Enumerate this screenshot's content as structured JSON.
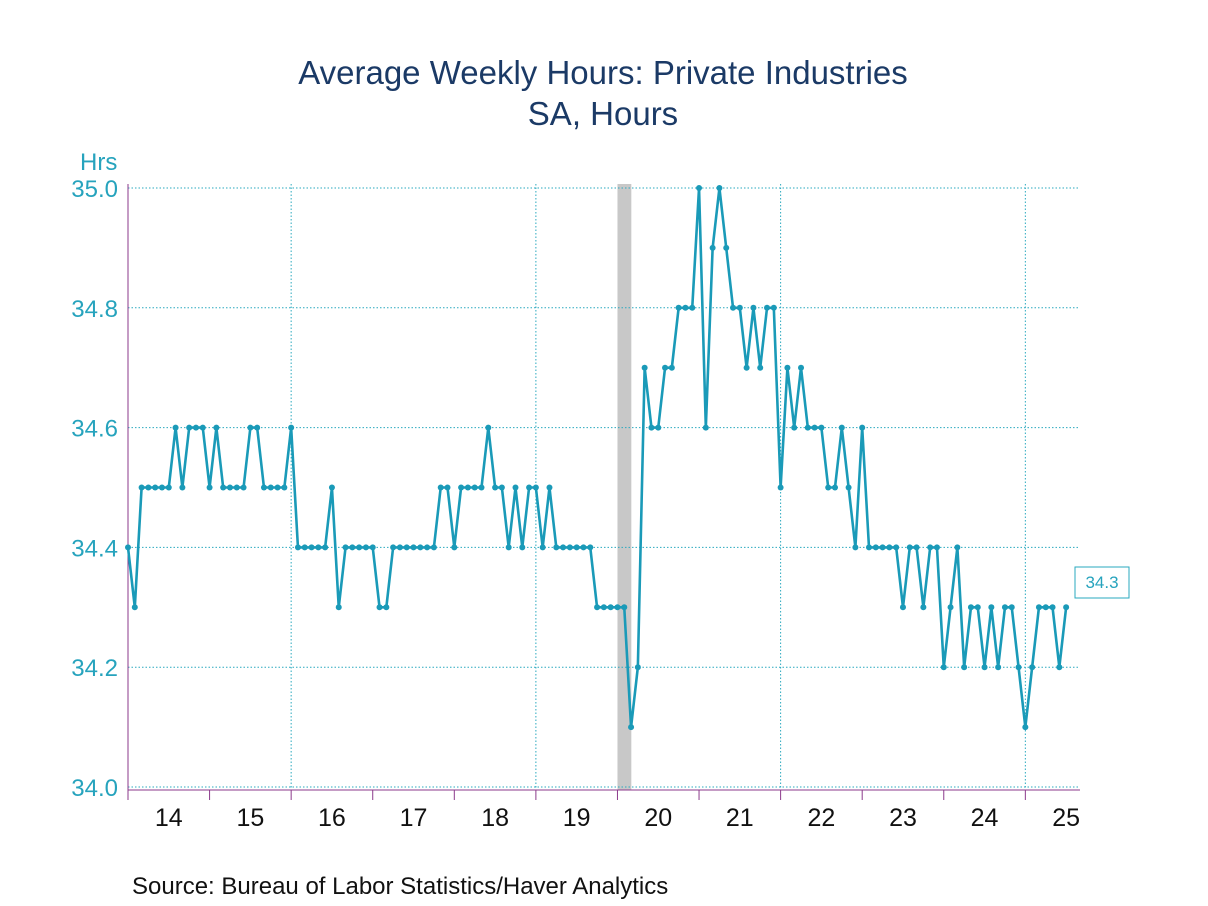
{
  "colors": {
    "series": "#1a9ab8",
    "axis": "#8b3a8b",
    "grid": "#2aa9bf",
    "recession": "#c8c8c8",
    "title": "#1b3a66",
    "ytick": "#26a3bd"
  },
  "chart_data": {
    "type": "line",
    "title": "Average Weekly Hours: Private Industries",
    "subtitle": "SA, Hours",
    "ylabel": "Hrs",
    "ylim": [
      34.0,
      35.0
    ],
    "yticks": [
      "35.0",
      "34.8",
      "34.6",
      "34.4",
      "34.2",
      "34.0"
    ],
    "xlim": [
      2014.0,
      2025.67
    ],
    "year_labels": [
      "14",
      "15",
      "16",
      "17",
      "18",
      "19",
      "20",
      "21",
      "22",
      "23",
      "24",
      "25"
    ],
    "grid": "dotted",
    "recession_shading": {
      "start": 2020.0,
      "end": 2020.17
    },
    "start": "2014-01",
    "frequency": "monthly",
    "last_value_label": "34.3",
    "series": [
      {
        "values": [
          34.4,
          34.3,
          34.5,
          34.5,
          34.5,
          34.5,
          34.5,
          34.6,
          34.5,
          34.6,
          34.6,
          34.6,
          34.5,
          34.6,
          34.5,
          34.5,
          34.5,
          34.5,
          34.6,
          34.6,
          34.5,
          34.5,
          34.5,
          34.5,
          34.6,
          34.4,
          34.4,
          34.4,
          34.4,
          34.4,
          34.5,
          34.3,
          34.4,
          34.4,
          34.4,
          34.4,
          34.4,
          34.3,
          34.3,
          34.4,
          34.4,
          34.4,
          34.4,
          34.4,
          34.4,
          34.4,
          34.5,
          34.5,
          34.4,
          34.5,
          34.5,
          34.5,
          34.5,
          34.6,
          34.5,
          34.5,
          34.4,
          34.5,
          34.4,
          34.5,
          34.5,
          34.4,
          34.5,
          34.4,
          34.4,
          34.4,
          34.4,
          34.4,
          34.4,
          34.3,
          34.3,
          34.3,
          34.3,
          34.3,
          34.1,
          34.2,
          34.7,
          34.6,
          34.6,
          34.7,
          34.7,
          34.8,
          34.8,
          34.8,
          35.0,
          34.6,
          34.9,
          35.0,
          34.9,
          34.8,
          34.8,
          34.7,
          34.8,
          34.7,
          34.8,
          34.8,
          34.5,
          34.7,
          34.6,
          34.7,
          34.6,
          34.6,
          34.6,
          34.5,
          34.5,
          34.6,
          34.5,
          34.4,
          34.6,
          34.4,
          34.4,
          34.4,
          34.4,
          34.4,
          34.3,
          34.4,
          34.4,
          34.3,
          34.4,
          34.4,
          34.2,
          34.3,
          34.4,
          34.2,
          34.3,
          34.3,
          34.2,
          34.3,
          34.2,
          34.3,
          34.3,
          34.2,
          34.1,
          34.2,
          34.3,
          34.3,
          34.3,
          34.2,
          34.3
        ]
      }
    ]
  },
  "source": "Source:  Bureau of Labor Statistics/Haver Analytics"
}
